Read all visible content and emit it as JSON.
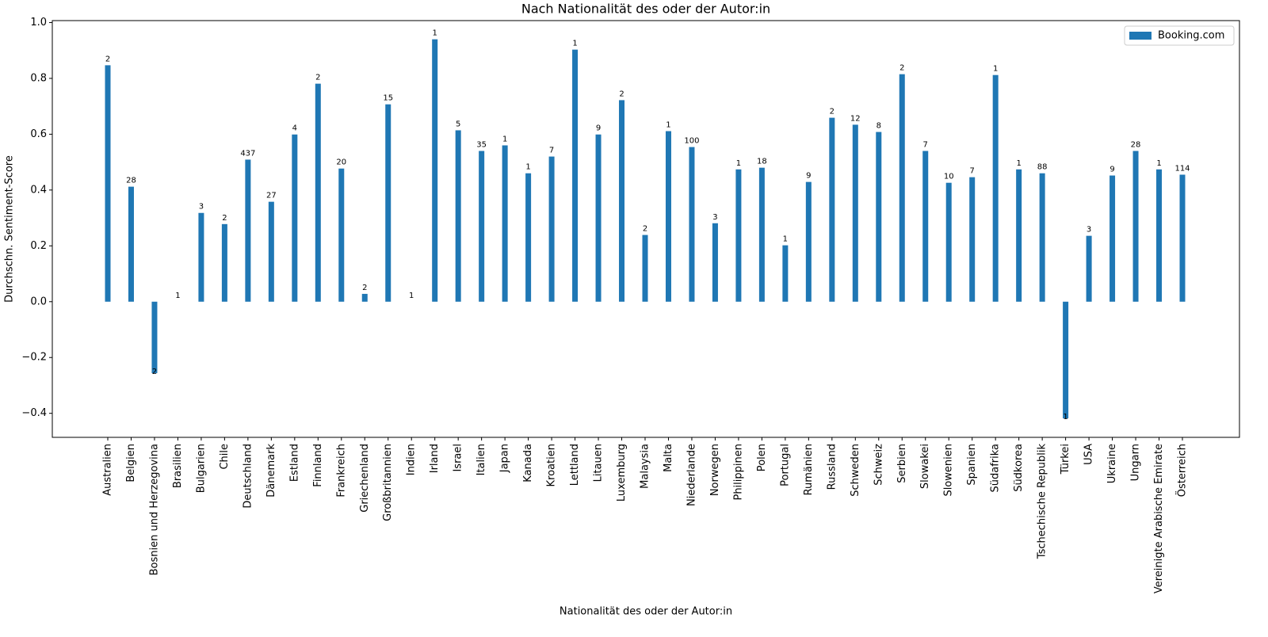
{
  "chart_data": {
    "type": "bar",
    "title": "Nach Nationalität des oder der Autor:in",
    "x_label": "Nationalität des oder der Autor:in",
    "y_label": "Durchschn. Sentiment-Score",
    "categories": [
      "Australien",
      "Belgien",
      "Bosnien und Herzegovina",
      "Brasilien",
      "Bulgarien",
      "Chile",
      "Deutschland",
      "Dänemark",
      "Estland",
      "Finnland",
      "Frankreich",
      "Griechenland",
      "Großbritannien",
      "Indien",
      "Irland",
      "Israel",
      "Italien",
      "Japan",
      "Kanada",
      "Kroatien",
      "Lettland",
      "Litauen",
      "Luxemburg",
      "Malaysia",
      "Malta",
      "Niederlande",
      "Norwegen",
      "Philippinen",
      "Polen",
      "Portugal",
      "Rumänien",
      "Russland",
      "Schweden",
      "Schweiz",
      "Serbien",
      "Slowakei",
      "Slowenien",
      "Spanien",
      "Südafrika",
      "Südkorea",
      "Tschechische Republik",
      "Türkei",
      "USA",
      "Ukraine",
      "Ungarn",
      "Vereinigte Arabische Emirate",
      "Österreich"
    ],
    "series": [
      {
        "name": "Booking.com",
        "color": "#1f77b4",
        "values": [
          0.847,
          0.412,
          -0.256,
          0,
          0.318,
          0.278,
          0.509,
          0.358,
          0.599,
          0.781,
          0.477,
          0.028,
          0.707,
          0,
          0.94,
          0.614,
          0.54,
          0.56,
          0.46,
          0.52,
          0.903,
          0.599,
          0.722,
          0.239,
          0.611,
          0.554,
          0.281,
          0.474,
          0.48,
          0.202,
          0.429,
          0.659,
          0.634,
          0.608,
          0.815,
          0.54,
          0.426,
          0.446,
          0.812,
          0.474,
          0.46,
          -0.418,
          0.236,
          0.452,
          0.54,
          0.474,
          0.455
        ],
        "annotations": [
          2,
          28,
          2,
          1,
          3,
          2,
          437,
          27,
          4,
          2,
          20,
          2,
          15,
          1,
          1,
          5,
          35,
          1,
          1,
          7,
          1,
          9,
          2,
          2,
          1,
          100,
          3,
          1,
          18,
          1,
          9,
          2,
          12,
          8,
          2,
          7,
          10,
          7,
          1,
          1,
          88,
          1,
          3,
          9,
          28,
          1,
          114
        ]
      }
    ],
    "ylim": [
      -0.486,
      1.007
    ],
    "yticks": [
      {
        "value": -0.4,
        "label": "−0.4"
      },
      {
        "value": -0.2,
        "label": "−0.2"
      },
      {
        "value": 0,
        "label": "0.0"
      },
      0.2,
      0.4,
      0.6,
      0.8,
      {
        "value": 1,
        "label": "1.0"
      }
    ],
    "legend": "upper right"
  }
}
